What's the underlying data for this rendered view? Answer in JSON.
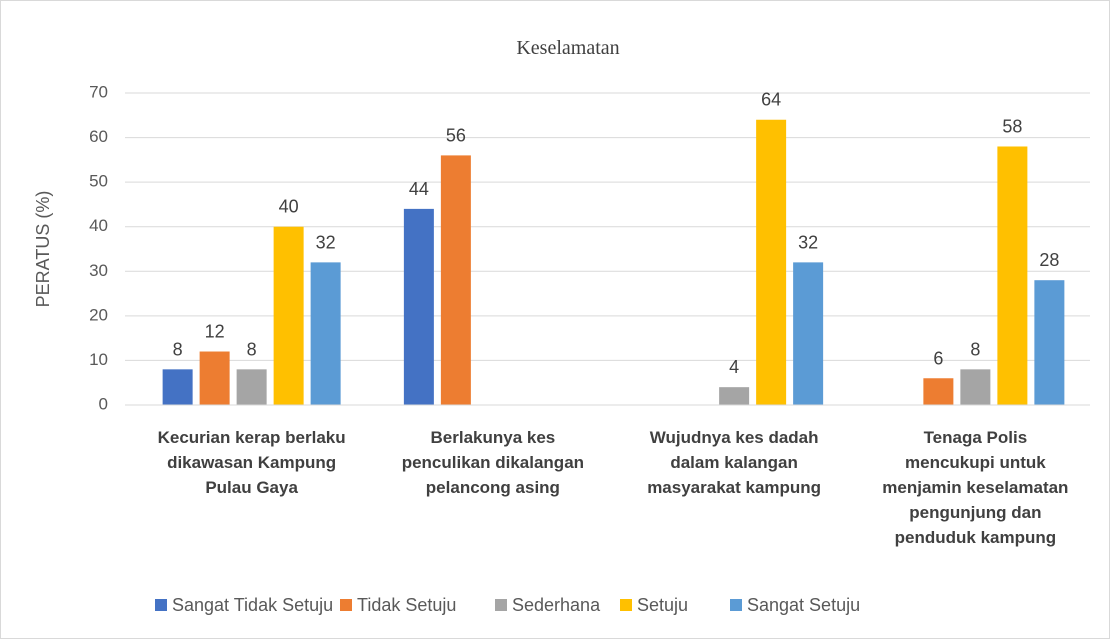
{
  "chart_data": {
    "type": "bar",
    "title": "Keselamatan",
    "y_label": "PERATUS (%)",
    "categories": [
      "Kecurian kerap berlaku\ndikawasan Kampung\nPulau Gaya",
      "Berlakunya kes\npenculikan dikalangan\npelancong asing",
      "Wujudnya kes dadah\ndalam kalangan\nmasyarakat kampung",
      "Tenaga Polis\nmencukupi untuk\nmenjamin keselamatan\npengunjung dan\npenduduk kampung"
    ],
    "series": [
      {
        "name": "Sangat Tidak Setuju",
        "color": "#4472c4",
        "values": [
          8,
          44,
          null,
          null
        ]
      },
      {
        "name": "Tidak Setuju",
        "color": "#ed7d31",
        "values": [
          12,
          56,
          null,
          6
        ]
      },
      {
        "name": "Sederhana",
        "color": "#a5a5a5",
        "values": [
          8,
          null,
          4,
          8
        ]
      },
      {
        "name": "Setuju",
        "color": "#ffc000",
        "values": [
          40,
          null,
          64,
          58
        ]
      },
      {
        "name": "Sangat Setuju",
        "color": "#5b9bd5",
        "values": [
          32,
          null,
          32,
          28
        ]
      }
    ],
    "ylim": [
      0,
      70
    ],
    "yticks": [
      0,
      10,
      20,
      30,
      40,
      50,
      60,
      70
    ],
    "grid": true,
    "legend": "bottom"
  }
}
